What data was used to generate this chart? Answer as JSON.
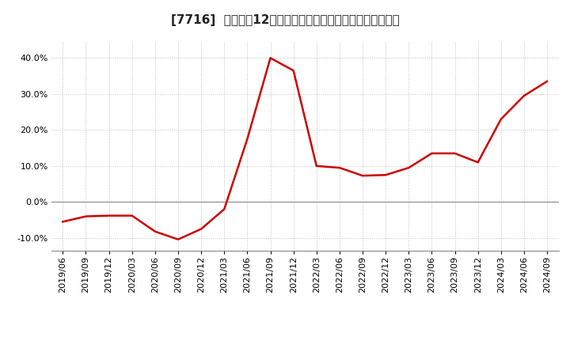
{
  "title": "[7716]  売上高の12か月移動合計の対前年同期増減率の推移",
  "line_color": "#cc0000",
  "bg_color": "#ffffff",
  "plot_bg_color": "#ffffff",
  "grid_color": "#bbbbbb",
  "ylim": [
    -0.135,
    0.445
  ],
  "yticks": [
    -0.1,
    0.0,
    0.1,
    0.2,
    0.3,
    0.4
  ],
  "dates": [
    "2019/06",
    "2019/09",
    "2019/12",
    "2020/03",
    "2020/06",
    "2020/09",
    "2020/12",
    "2021/03",
    "2021/06",
    "2021/09",
    "2021/12",
    "2022/03",
    "2022/06",
    "2022/09",
    "2022/12",
    "2023/03",
    "2023/06",
    "2023/09",
    "2023/12",
    "2024/03",
    "2024/06",
    "2024/09"
  ],
  "values": [
    -0.055,
    -0.04,
    -0.038,
    -0.038,
    -0.082,
    -0.104,
    -0.075,
    -0.02,
    0.175,
    0.4,
    0.365,
    0.1,
    0.095,
    0.073,
    0.075,
    0.095,
    0.135,
    0.135,
    0.11,
    0.23,
    0.295,
    0.335
  ],
  "title_fontsize": 11,
  "tick_fontsize": 8,
  "line_width": 1.8
}
